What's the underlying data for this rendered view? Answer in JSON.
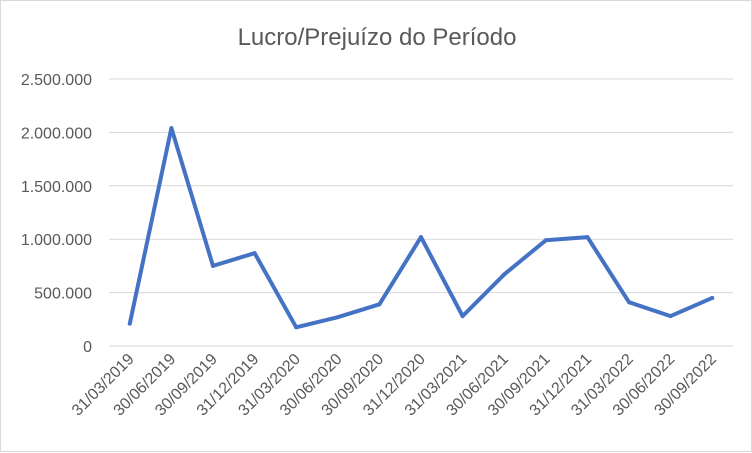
{
  "chart_data": {
    "type": "line",
    "title": "Lucro/Prejuízo do Período",
    "xlabel": "",
    "ylabel": "",
    "categories": [
      "31/03/2019",
      "30/06/2019",
      "30/09/2019",
      "31/12/2019",
      "31/03/2020",
      "30/06/2020",
      "30/09/2020",
      "31/12/2020",
      "31/03/2021",
      "30/06/2021",
      "30/09/2021",
      "31/12/2021",
      "31/03/2022",
      "30/06/2022",
      "30/09/2022"
    ],
    "series": [
      {
        "values": [
          210000,
          2040000,
          750000,
          870000,
          175000,
          270000,
          390000,
          1020000,
          280000,
          670000,
          990000,
          1020000,
          410000,
          280000,
          450000
        ]
      }
    ],
    "ylim": [
      0,
      2500000
    ],
    "yticks": [
      0,
      500000,
      1000000,
      1500000,
      2000000,
      2500000
    ],
    "ytick_labels": [
      "0",
      "500.000",
      "1.000.000",
      "1.500.000",
      "2.000.000",
      "2.500.000"
    ],
    "grid": true,
    "legend": "none",
    "colors": {
      "series": "#4472c4",
      "grid": "#d9d9d9",
      "text": "#595959"
    }
  }
}
